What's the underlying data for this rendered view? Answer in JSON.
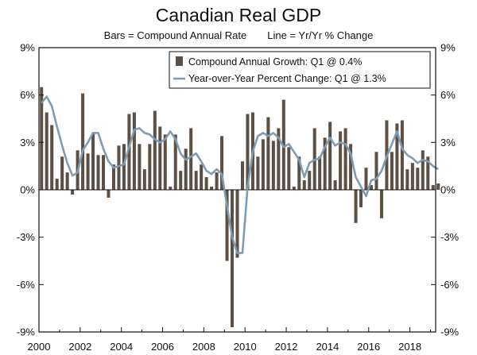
{
  "chart_data": {
    "type": "bar+line",
    "title": "Canadian Real GDP",
    "subtitle_bars": "Bars = Compound Annual Rate",
    "subtitle_line": "Line = Yr/Yr % Change",
    "ylim": [
      -9,
      9
    ],
    "y_ticks": [
      9,
      6,
      3,
      0,
      -3,
      -6,
      -9
    ],
    "y_tick_labels": [
      "9%",
      "6%",
      "3%",
      "0%",
      "-3%",
      "-6%",
      "-9%"
    ],
    "x_range": [
      2000,
      2019.25
    ],
    "x_ticks": [
      2000,
      2002,
      2004,
      2006,
      2008,
      2010,
      2012,
      2014,
      2016,
      2018
    ],
    "x_tick_labels": [
      "2000",
      "2002",
      "2004",
      "2006",
      "2008",
      "2010",
      "2012",
      "2014",
      "2016",
      "2018"
    ],
    "start_year": 2000,
    "legend_position": "top-right",
    "bar_color": "#5c4f43",
    "line_color": "#7f9db2",
    "series": [
      {
        "name": "Compound Annual Growth: Q1 @ 0.4%",
        "kind": "bar",
        "values": [
          6.5,
          4.9,
          4.1,
          0.7,
          2.1,
          1.1,
          -0.3,
          2.5,
          6.1,
          2.3,
          3.6,
          2.2,
          2.2,
          -0.5,
          1.6,
          2.8,
          2.9,
          4.8,
          4.9,
          2.9,
          1.3,
          2.9,
          5.0,
          4.0,
          3.5,
          0.2,
          3.5,
          1.2,
          2.6,
          3.9,
          1.2,
          1.6,
          0.8,
          0.2,
          1.1,
          3.4,
          -4.5,
          -8.7,
          -4.3,
          1.8,
          4.8,
          4.9,
          2.1,
          3.2,
          4.6,
          3.1,
          3.9,
          5.7,
          2.7,
          0.2,
          2.1,
          0.6,
          1.2,
          3.9,
          2.1,
          3.3,
          4.3,
          0.6,
          3.7,
          3.9,
          2.9,
          -2.1,
          -1.1,
          1.4,
          0.3,
          2.4,
          -1.8,
          4.4,
          2.4,
          4.2,
          4.4,
          1.3,
          1.7,
          1.4,
          2.5,
          2.1,
          0.3,
          0.4
        ]
      },
      {
        "name": "Year-over-Year Percent Change: Q1 @ 1.3%",
        "kind": "line",
        "values": [
          5.5,
          5.9,
          5.3,
          4.0,
          2.8,
          1.7,
          0.9,
          1.1,
          2.5,
          3.0,
          3.6,
          3.6,
          2.6,
          1.8,
          1.4,
          1.5,
          1.6,
          2.7,
          3.8,
          3.9,
          3.6,
          3.5,
          3.2,
          3.0,
          3.2,
          3.7,
          3.2,
          2.3,
          1.9,
          2.1,
          2.3,
          1.8,
          1.2,
          1.0,
          1.3,
          1.0,
          -1.0,
          -3.0,
          -4.0,
          -4.0,
          0.2,
          2.4,
          3.4,
          3.6,
          3.4,
          3.6,
          3.3,
          2.7,
          2.9,
          2.4,
          1.9,
          0.8,
          1.7,
          1.9,
          2.0,
          2.7,
          3.3,
          2.8,
          3.0,
          2.9,
          2.3,
          0.8,
          0.2,
          -0.4,
          0.6,
          0.7,
          1.2,
          2.1,
          2.9,
          3.7,
          2.6,
          2.2,
          2.0,
          1.7,
          1.9,
          1.8,
          1.5,
          1.3
        ]
      }
    ]
  }
}
